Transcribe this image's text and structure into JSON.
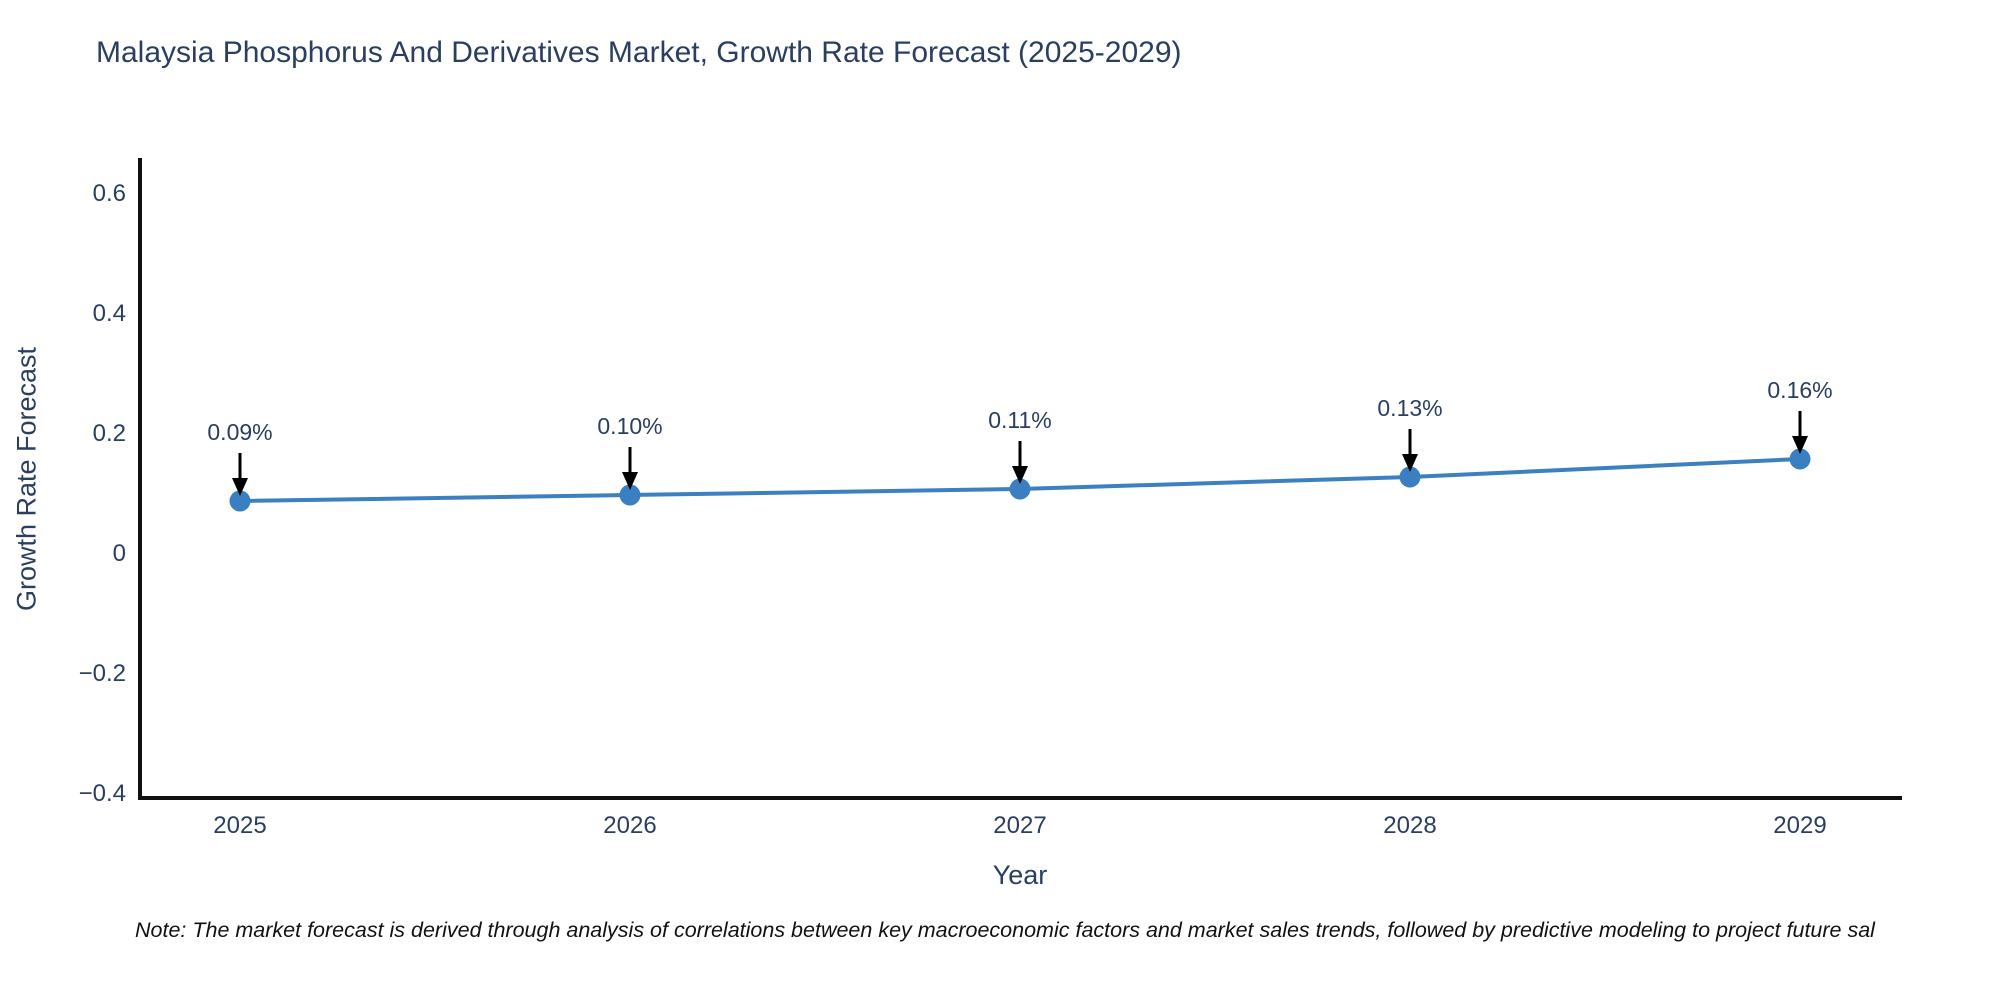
{
  "chart_data": {
    "type": "line",
    "title": "Malaysia Phosphorus And Derivatives Market, Growth Rate Forecast (2025-2029)",
    "xlabel": "Year",
    "ylabel": "Growth Rate Forecast",
    "x": [
      2025,
      2026,
      2027,
      2028,
      2029
    ],
    "series": [
      {
        "name": "Growth Rate Forecast",
        "values": [
          0.09,
          0.1,
          0.11,
          0.13,
          0.16
        ]
      }
    ],
    "point_labels": [
      "0.09%",
      "0.10%",
      "0.11%",
      "0.13%",
      "0.16%"
    ],
    "xticks": {
      "values": [
        2025,
        2026,
        2027,
        2028,
        2029
      ],
      "labels": [
        "2025",
        "2026",
        "2027",
        "2028",
        "2029"
      ]
    },
    "yticks": {
      "values": [
        0.6,
        0.4,
        0.2,
        0,
        -0.2,
        -0.4
      ],
      "labels": [
        "0.6",
        "0.4",
        "0.2",
        "0",
        "−0.2",
        "−0.4"
      ]
    },
    "xlim": [
      2024.74,
      2029.26
    ],
    "ylim": [
      -0.41,
      0.66
    ],
    "grid": false,
    "legend_position": "none",
    "annotation_style": "value label with downward black arrow to marker",
    "colors": {
      "line": "#3d80bf",
      "marker": "#3a7fc1",
      "arrow": "#000000",
      "axis_line": "#101010",
      "text": "#2a3f5f",
      "note_text": "#111111",
      "background": "#ffffff"
    }
  },
  "note": "Note: The market forecast is derived through analysis of correlations between key macroeconomic factors and market sales trends, followed by predictive modeling to project future sal"
}
